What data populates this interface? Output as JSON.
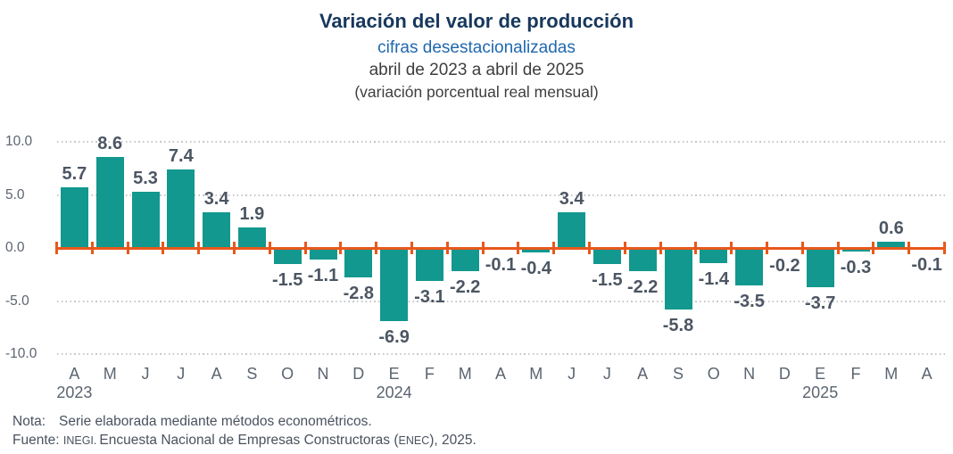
{
  "header": {
    "title": "Variación del valor de producción",
    "subtitle": "cifras desestacionalizadas",
    "period": "abril de 2023 a abril de 2025",
    "unit_note": "(variación porcentual real mensual)"
  },
  "chart_data": {
    "type": "bar",
    "title": "Variación del valor de producción",
    "subtitle": "cifras desestacionalizadas, abril de 2023 a abril de 2025",
    "ylabel": "variación porcentual real mensual",
    "categories": [
      "A",
      "M",
      "J",
      "J",
      "A",
      "S",
      "O",
      "N",
      "D",
      "E",
      "F",
      "M",
      "A",
      "M",
      "J",
      "J",
      "A",
      "S",
      "O",
      "N",
      "D",
      "E",
      "F",
      "M",
      "A"
    ],
    "values": [
      5.7,
      8.6,
      5.3,
      7.4,
      3.4,
      1.9,
      -1.5,
      -1.1,
      -2.8,
      -6.9,
      -3.1,
      -2.2,
      -0.1,
      -0.4,
      3.4,
      -1.5,
      -2.2,
      -5.8,
      -1.4,
      -3.5,
      -0.2,
      -3.7,
      -0.3,
      0.6,
      -0.1
    ],
    "year_labels": [
      {
        "index": 0,
        "label": "2023"
      },
      {
        "index": 9,
        "label": "2024"
      },
      {
        "index": 21,
        "label": "2025"
      }
    ],
    "y_ticks": [
      "10.0",
      "5.0",
      "0.0",
      "-5.0",
      "-10.0"
    ],
    "ylim": [
      -10,
      10
    ],
    "grid": true,
    "legend": "none",
    "bar_color": "#12988E",
    "zero_line_color": "#E8581C",
    "grid_color": "#C5C7C9",
    "label_color": "#4C5663",
    "axis_text_color": "#5B6470"
  },
  "footer": {
    "note_label": "Nota:",
    "note_text": "Serie elaborada mediante métodos econométricos.",
    "source_label": "Fuente:",
    "source_org": "INEGI.",
    "source_text": "Encuesta Nacional de Empresas Constructoras (",
    "source_acronym": "ENEC",
    "source_suffix": "), 2025."
  }
}
